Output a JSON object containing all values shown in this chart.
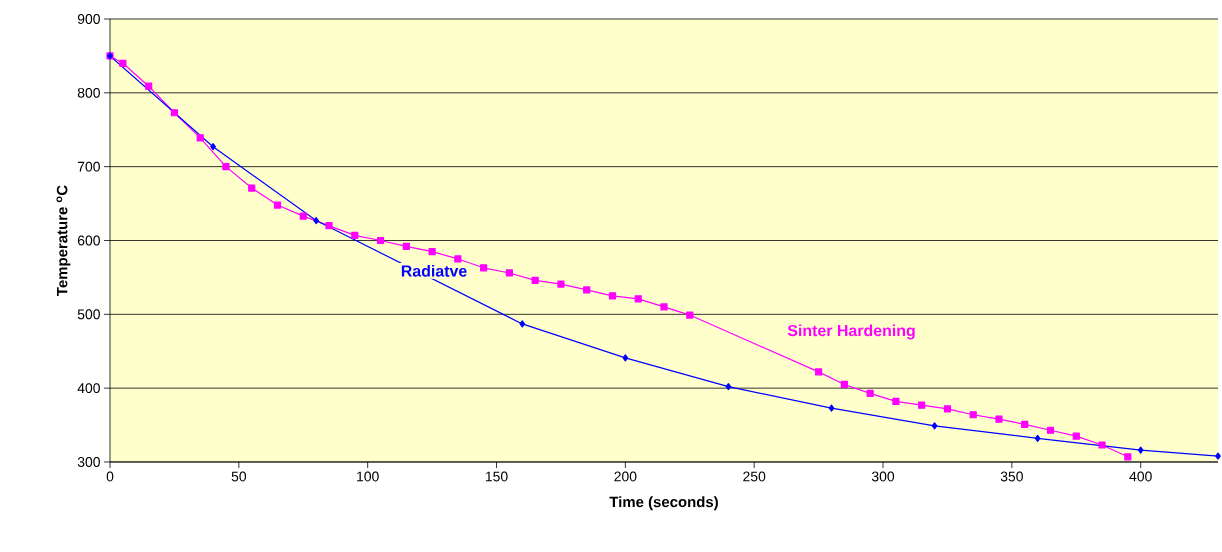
{
  "chart_data": {
    "type": "line",
    "xlabel": "Time (seconds)",
    "ylabel": "Temperature $^{o}$C",
    "xlim": [
      0,
      430
    ],
    "xticks": [
      0,
      50,
      100,
      150,
      200,
      250,
      300,
      350,
      400
    ],
    "ylim": [
      300,
      900
    ],
    "yticks": [
      300,
      400,
      500,
      600,
      700,
      800,
      900
    ],
    "grid": "y",
    "line_style": "solid",
    "series": [
      {
        "name": "Radiatve",
        "color": "#0000ff",
        "marker": "diamond",
        "x": [
          0,
          40,
          80,
          160,
          200,
          240,
          280,
          320,
          360,
          400,
          430
        ],
        "values": [
          850,
          727,
          627,
          487,
          441,
          402,
          373,
          349,
          332,
          316,
          308
        ]
      },
      {
        "name": "Sinter Hardening",
        "color": "#ff00ff",
        "marker": "square",
        "x": [
          0,
          5,
          15,
          25,
          35,
          45,
          55,
          65,
          75,
          85,
          95,
          105,
          115,
          125,
          135,
          145,
          155,
          165,
          175,
          185,
          195,
          205,
          215,
          225,
          275,
          285,
          295,
          305,
          315,
          325,
          335,
          345,
          355,
          365,
          375,
          385,
          395
        ],
        "values": [
          850,
          840,
          809,
          773,
          739,
          700,
          671,
          648,
          633,
          620,
          607,
          600,
          592,
          585,
          575,
          563,
          556,
          546,
          541,
          533,
          525,
          521,
          510,
          499,
          422,
          405,
          393,
          382,
          377,
          372,
          364,
          358,
          351,
          343,
          335,
          323,
          307
        ]
      }
    ]
  }
}
